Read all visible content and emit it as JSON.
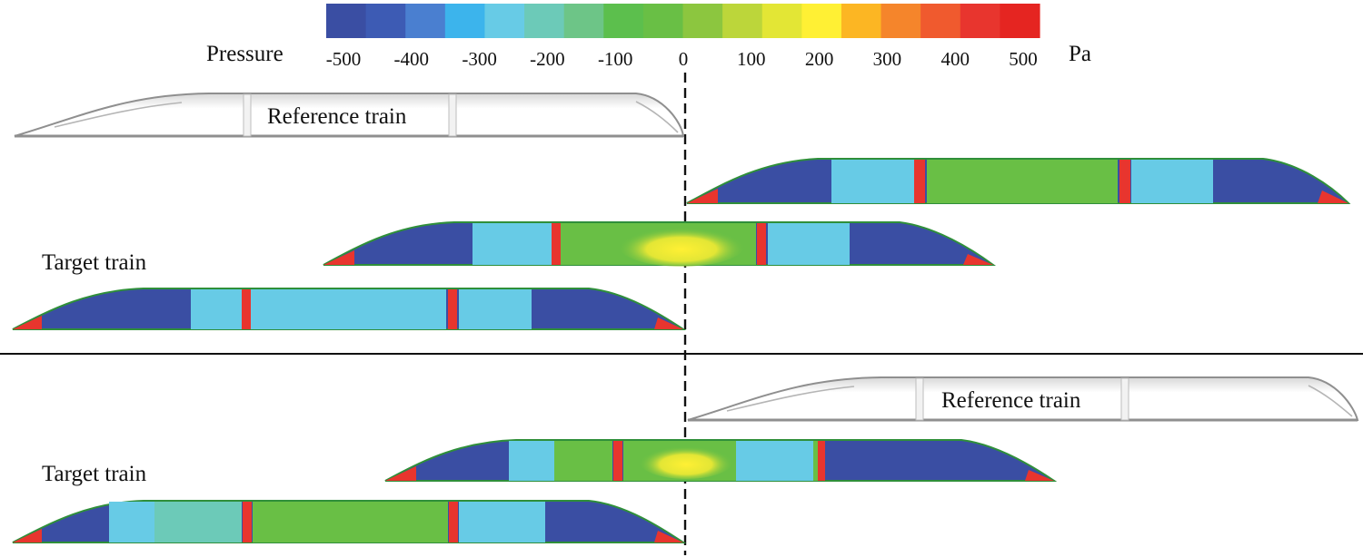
{
  "colorbar": {
    "title": "Pressure",
    "unit": "Pa",
    "ticks": [
      "-500",
      "-400",
      "-300",
      "-200",
      "-100",
      "0",
      "100",
      "200",
      "300",
      "400",
      "500"
    ],
    "colors": [
      "#3a4ea3",
      "#3d5bb4",
      "#4a7fd0",
      "#3cb4ec",
      "#67cbe6",
      "#6ccab8",
      "#6dc587",
      "#5cbf4d",
      "#69bf45",
      "#8cc63f",
      "#bcd63a",
      "#e3e635",
      "#fff034",
      "#fcb623",
      "#f5852b",
      "#f05a2e",
      "#e8352e",
      "#e52521"
    ]
  },
  "labels": {
    "reference_train_top": "Reference train",
    "target_train_top": "Target train",
    "reference_train_bottom": "Reference train",
    "target_train_bottom": "Target train"
  },
  "surface_colors": {
    "outline": "#9a9a9a",
    "white_body": "#ffffff",
    "deep_blue": "#3a4ea3",
    "light_blue": "#67cbe6",
    "green": "#69bf45",
    "yellow": "#fff034",
    "red": "#e8352e"
  }
}
